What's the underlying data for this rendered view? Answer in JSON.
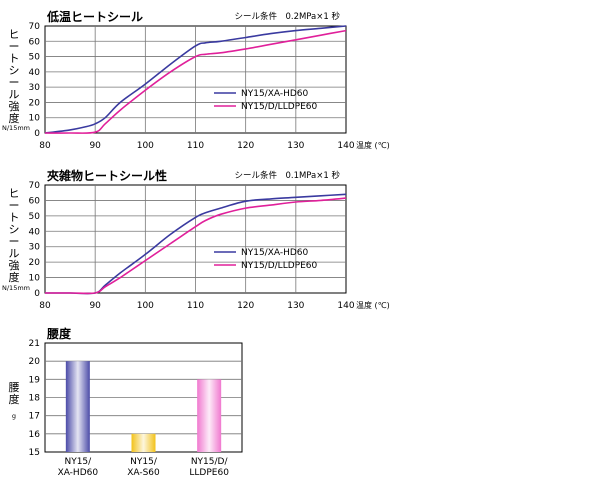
{
  "chart_data": [
    {
      "type": "line",
      "title": "低温ヒートシール",
      "condition": "シール条件　0.2MPa×1 秒",
      "ylabel": "ヒートシール強度",
      "yunit": "N/15mm",
      "xunit": "温度 (℃)",
      "xlim": [
        80,
        140
      ],
      "ylim": [
        0,
        70
      ],
      "xticks": [
        80,
        90,
        100,
        110,
        120,
        130,
        140
      ],
      "yticks": [
        0,
        10,
        20,
        30,
        40,
        50,
        60,
        70
      ],
      "grid": true,
      "legend_position": "bottom-right",
      "series": [
        {
          "name": "NY15/XA-HD60",
          "color": "#3a3aa0",
          "x": [
            80,
            85,
            88,
            90,
            92,
            95,
            100,
            105,
            110,
            112,
            115,
            120,
            125,
            130,
            135,
            140
          ],
          "y": [
            0,
            2,
            4,
            6,
            10,
            20,
            32,
            45,
            57,
            59,
            60,
            62.5,
            65,
            67,
            68.5,
            70
          ]
        },
        {
          "name": "NY15/D/LLDPE60",
          "color": "#e0209a",
          "x": [
            80,
            85,
            90,
            92,
            95,
            100,
            105,
            110,
            112,
            115,
            120,
            125,
            130,
            135,
            140
          ],
          "y": [
            0,
            0,
            0.5,
            6,
            15,
            28,
            40,
            50,
            51.5,
            52.5,
            55,
            58,
            61,
            64,
            67
          ]
        }
      ]
    },
    {
      "type": "line",
      "title": "夾雑物ヒートシール性",
      "condition": "シール条件　0.1MPa×1 秒",
      "ylabel": "ヒートシール強度",
      "yunit": "N/15mm",
      "xunit": "温度 (℃)",
      "xlim": [
        80,
        140
      ],
      "ylim": [
        0,
        70
      ],
      "xticks": [
        80,
        90,
        100,
        110,
        120,
        130,
        140
      ],
      "yticks": [
        0,
        10,
        20,
        30,
        40,
        50,
        60,
        70
      ],
      "grid": true,
      "legend_position": "bottom-right",
      "series": [
        {
          "name": "NY15/XA-HD60",
          "color": "#3a3aa0",
          "x": [
            80,
            85,
            90,
            92,
            95,
            100,
            105,
            110,
            112,
            115,
            120,
            125,
            130,
            135,
            140
          ],
          "y": [
            0,
            0,
            0,
            5,
            13,
            25,
            38,
            49,
            52,
            55,
            59.5,
            61,
            62,
            63,
            64
          ]
        },
        {
          "name": "NY15/D/LLDPE60",
          "color": "#e0209a",
          "x": [
            80,
            85,
            90,
            92,
            95,
            100,
            105,
            110,
            112,
            115,
            120,
            125,
            130,
            135,
            140
          ],
          "y": [
            0,
            0,
            0,
            4,
            10,
            21,
            32,
            43,
            47,
            51,
            55,
            57,
            59,
            60,
            61.5
          ]
        }
      ]
    },
    {
      "type": "bar",
      "title": "腰度",
      "ylabel": "腰度",
      "yunit": "g",
      "ylim": [
        15,
        21
      ],
      "yticks": [
        15,
        16,
        17,
        18,
        19,
        20,
        21
      ],
      "grid": true,
      "categories": [
        {
          "line1": "NY15/",
          "line2": "XA-HD60"
        },
        {
          "line1": "NY15/",
          "line2": "XA-S60"
        },
        {
          "line1": "NY15/D/",
          "line2": "LLDPE60"
        }
      ],
      "values": [
        20,
        16,
        19
      ],
      "colors": [
        "#4b4ba8",
        "#f2c21a",
        "#f078cf"
      ]
    }
  ]
}
